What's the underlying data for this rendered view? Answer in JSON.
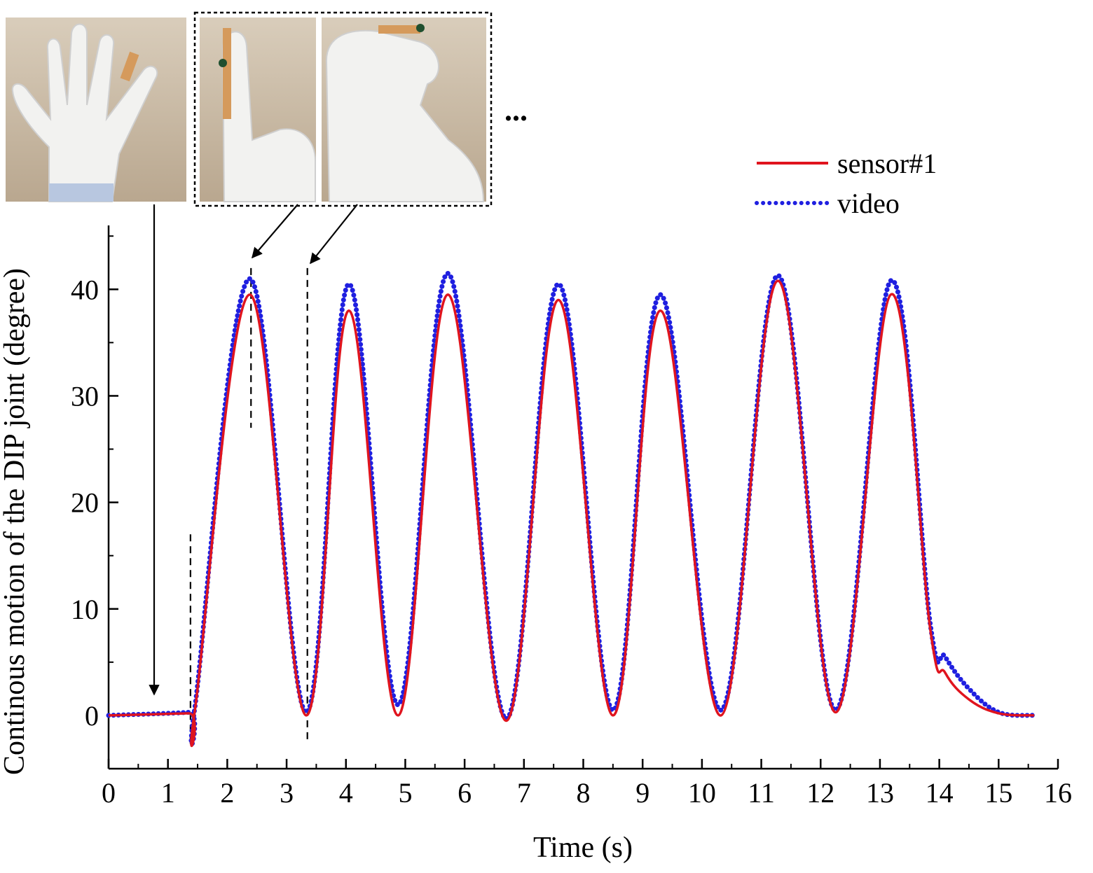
{
  "chart_data": {
    "type": "line",
    "title": "",
    "xlabel": "Time (s)",
    "ylabel": "Continous motion of the DIP joint (degree)",
    "xlim": [
      0,
      16
    ],
    "ylim": [
      -5,
      46
    ],
    "xticks": [
      0,
      1,
      2,
      3,
      4,
      5,
      6,
      7,
      8,
      9,
      10,
      11,
      12,
      13,
      14,
      15,
      16
    ],
    "yticks": [
      0,
      10,
      20,
      30,
      40
    ],
    "grid": false,
    "legend_position": "top-right",
    "series": [
      {
        "name": "sensor#1",
        "style": "solid",
        "color": "#e0141e",
        "x": [
          0.0,
          1.35,
          1.45,
          2.38,
          3.33,
          4.05,
          4.88,
          5.72,
          6.7,
          7.58,
          8.5,
          9.3,
          10.32,
          11.28,
          12.25,
          13.18,
          13.85,
          14.1,
          14.5,
          15.0,
          15.6
        ],
        "y": [
          0.0,
          0.2,
          0.3,
          39.5,
          0.0,
          38.0,
          0.0,
          39.5,
          -0.5,
          39.0,
          0.0,
          38.0,
          0.0,
          40.8,
          0.3,
          39.5,
          8.0,
          4.0,
          1.5,
          0.2,
          0.0
        ]
      },
      {
        "name": "video",
        "style": "dotted",
        "color": "#1f1fe0",
        "x": [
          0.0,
          1.35,
          1.45,
          2.38,
          3.33,
          4.05,
          4.88,
          5.72,
          6.7,
          7.58,
          8.5,
          9.3,
          10.32,
          11.28,
          12.25,
          13.18,
          13.85,
          14.1,
          14.5,
          15.0,
          15.6
        ],
        "y": [
          0.0,
          0.3,
          0.6,
          41.0,
          0.3,
          40.5,
          1.0,
          41.5,
          -0.3,
          40.5,
          0.5,
          39.5,
          0.5,
          41.3,
          0.5,
          40.8,
          8.5,
          5.5,
          2.5,
          0.3,
          0.0
        ]
      }
    ],
    "annotations": {
      "ellipsis": "...",
      "dashed_markers_x": [
        1.38,
        2.4,
        3.35
      ]
    },
    "insets": [
      {
        "name": "open-hand-photo"
      },
      {
        "name": "finger-extended-photo"
      },
      {
        "name": "finger-bent-photo"
      }
    ]
  }
}
